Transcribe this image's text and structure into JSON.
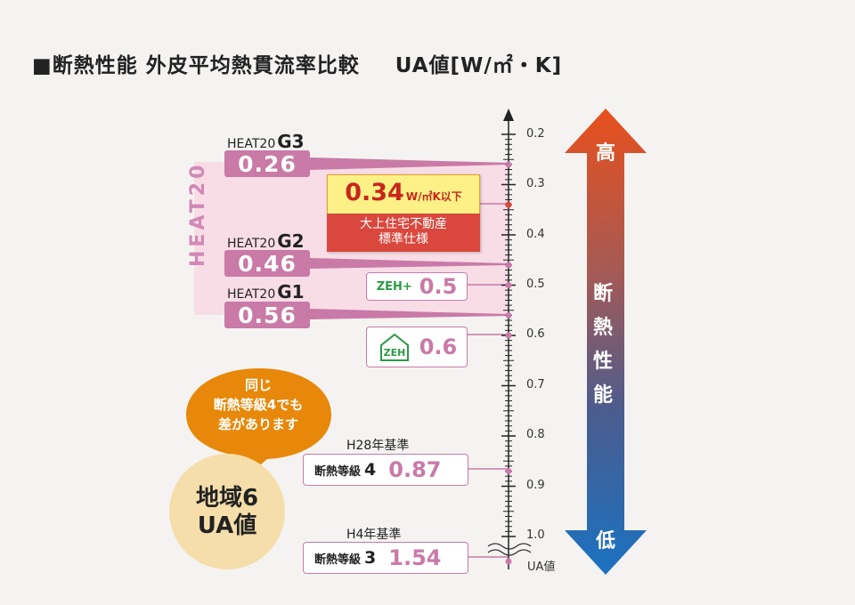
{
  "title": {
    "main": "■断熱性能 外皮平均熱貫流率比較",
    "unit": "UA値[W/㎡・K]"
  },
  "band_label": "HEAT20",
  "grades": [
    {
      "prefix": "HEAT20",
      "name": "G3",
      "value": 0.26,
      "display": "0.26"
    },
    {
      "prefix": "HEAT20",
      "name": "G2",
      "value": 0.46,
      "display": "0.46"
    },
    {
      "prefix": "HEAT20",
      "name": "G1",
      "value": 0.56,
      "display": "0.56"
    }
  ],
  "standard": {
    "value": 0.34,
    "display": "0.34",
    "unit": "W/㎡K以下",
    "line1": "大上住宅不動産",
    "line2": "標準仕様"
  },
  "zeh_plus": {
    "label": "ZEH+",
    "value": 0.5,
    "display": "0.5"
  },
  "zeh": {
    "label": "ZEH",
    "value": 0.6,
    "display": "0.6"
  },
  "h28": {
    "head": "H28年基準",
    "label": "断熱等級",
    "grade": "4",
    "value": 0.87,
    "display": "0.87"
  },
  "h4": {
    "head": "H4年基準",
    "label": "断熱等級",
    "grade": "3",
    "value": 1.54,
    "display": "1.54"
  },
  "axis": {
    "ticks": [
      "0.2",
      "0.3",
      "0.4",
      "0.5",
      "0.6",
      "0.7",
      "0.8",
      "0.9",
      "1.0"
    ],
    "name": "UA値"
  },
  "bubble": {
    "text": [
      "同じ",
      "断熱等級4でも",
      "差があります"
    ]
  },
  "region": {
    "line1": "地域6",
    "line2": "UA値"
  },
  "arrow": {
    "top": "高",
    "middle": "断熱性能",
    "bottom": "低"
  },
  "colors": {
    "pink": "#c97aa7",
    "band": "#f8dde6",
    "arrow_top": "#e8501c",
    "arrow_bottom": "#1a72c2",
    "bubble": "#e8880a",
    "circle": "#f5deaa",
    "standard_red": "#d9473d",
    "standard_yellow": "#fcf187"
  }
}
